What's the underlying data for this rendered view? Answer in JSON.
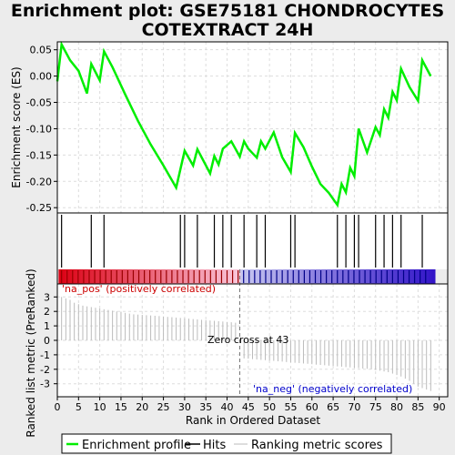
{
  "chart_data": {
    "type": "line",
    "title_line1": "Enrichment plot: GSE75181 CHONDROCYTES",
    "title_line2": "COTEXTRACT 24H",
    "xlabel": "Rank in Ordered Dataset",
    "ylabel_top": "Enrichment score (ES)",
    "ylabel_bottom": "Ranked list metric (PreRanked)",
    "xlim": [
      0,
      92
    ],
    "x_ticks": [
      0,
      5,
      10,
      15,
      20,
      25,
      30,
      35,
      40,
      45,
      50,
      55,
      60,
      65,
      70,
      75,
      80,
      85,
      90
    ],
    "es_ylim": [
      -0.26,
      0.065
    ],
    "es_ticks": [
      0.05,
      0.0,
      -0.05,
      -0.1,
      -0.15,
      -0.2,
      -0.25
    ],
    "es_tick_labels": [
      "0.05",
      "0.00",
      "-0.05",
      "-0.10",
      "-0.15",
      "-0.20",
      "-0.25"
    ],
    "metric_ylim": [
      -3.9,
      3.9
    ],
    "metric_ticks": [
      3,
      2,
      1,
      0,
      -1,
      -2,
      -3
    ],
    "metric_tick_labels": [
      "3",
      "2",
      "1",
      "0",
      "-1",
      "-2",
      "-3"
    ],
    "grid": true,
    "es_color": "#00ee00",
    "hit_color": "#000000",
    "metric_color": "#bbbbbb",
    "series": [
      {
        "name": "Enrichment profile",
        "x": [
          0,
          1,
          3,
          5,
          7,
          8,
          10,
          11,
          13,
          16,
          19,
          22,
          25,
          28,
          30,
          32,
          33,
          36,
          37,
          38,
          39,
          41,
          43,
          44,
          45,
          47,
          48,
          49,
          51,
          53,
          55,
          56,
          58,
          60,
          62,
          64,
          66,
          67,
          68,
          69,
          70,
          71,
          73,
          75,
          76,
          77,
          78,
          79,
          80,
          81,
          83,
          85,
          86,
          88
        ],
        "y": [
          -0.01,
          0.06,
          0.03,
          0.01,
          -0.033,
          0.023,
          -0.008,
          0.047,
          0.017,
          -0.035,
          -0.085,
          -0.13,
          -0.17,
          -0.212,
          -0.142,
          -0.17,
          -0.139,
          -0.185,
          -0.152,
          -0.168,
          -0.138,
          -0.124,
          -0.153,
          -0.124,
          -0.138,
          -0.155,
          -0.124,
          -0.138,
          -0.107,
          -0.154,
          -0.182,
          -0.108,
          -0.135,
          -0.172,
          -0.205,
          -0.222,
          -0.245,
          -0.205,
          -0.221,
          -0.174,
          -0.19,
          -0.1,
          -0.145,
          -0.097,
          -0.112,
          -0.063,
          -0.079,
          -0.03,
          -0.046,
          0.014,
          -0.021,
          -0.047,
          0.03,
          0.0
        ]
      },
      {
        "name": "Hits",
        "x": [
          1,
          8,
          11,
          29,
          30,
          33,
          37,
          39,
          41,
          44,
          47,
          49,
          55,
          56,
          66,
          68,
          70,
          71,
          75,
          77,
          79,
          81,
          86
        ]
      },
      {
        "name": "Ranking metric scores",
        "x": [
          1,
          2,
          3,
          4,
          5,
          6,
          7,
          8,
          9,
          10,
          11,
          12,
          13,
          14,
          15,
          16,
          17,
          18,
          19,
          20,
          21,
          22,
          23,
          24,
          25,
          26,
          27,
          28,
          29,
          30,
          31,
          32,
          33,
          34,
          35,
          36,
          37,
          38,
          39,
          40,
          41,
          42,
          43,
          44,
          45,
          46,
          47,
          48,
          49,
          50,
          51,
          52,
          53,
          54,
          55,
          56,
          57,
          58,
          59,
          60,
          61,
          62,
          63,
          64,
          65,
          66,
          67,
          68,
          69,
          70,
          71,
          72,
          73,
          74,
          75,
          76,
          77,
          78,
          79,
          80,
          81,
          82,
          83,
          84,
          85,
          86,
          87,
          88
        ],
        "values": [
          3.0,
          2.9,
          2.8,
          2.6,
          2.5,
          2.4,
          2.35,
          2.3,
          2.25,
          2.2,
          2.15,
          2.1,
          2.05,
          2.0,
          1.95,
          1.9,
          1.85,
          1.8,
          1.78,
          1.76,
          1.74,
          1.72,
          1.7,
          1.68,
          1.65,
          1.62,
          1.6,
          1.57,
          1.55,
          1.52,
          1.5,
          1.47,
          1.45,
          1.42,
          1.4,
          1.37,
          1.35,
          1.32,
          1.3,
          1.27,
          1.25,
          1.22,
          0.0,
          -1.25,
          -1.27,
          -1.3,
          -1.32,
          -1.35,
          -1.37,
          -1.4,
          -1.42,
          -1.45,
          -1.47,
          -1.5,
          -1.52,
          -1.55,
          -1.57,
          -1.6,
          -1.62,
          -1.65,
          -1.68,
          -1.7,
          -1.72,
          -1.75,
          -1.77,
          -1.8,
          -1.82,
          -1.85,
          -1.87,
          -1.9,
          -1.92,
          -1.95,
          -1.97,
          -2.0,
          -2.05,
          -2.1,
          -2.15,
          -2.2,
          -2.3,
          -2.4,
          -2.5,
          -2.65,
          -2.8,
          -3.0,
          -3.2,
          -3.3,
          -3.4,
          -3.5
        ]
      }
    ],
    "legend": {
      "placement": "bottom",
      "items": [
        "Enrichment profile",
        "Hits",
        "Ranking metric scores"
      ]
    },
    "annotations": {
      "pos_label": "'na_pos' (positively correlated)",
      "neg_label": "'na_neg' (negatively correlated)",
      "zero_cross_label": "Zero cross at 43",
      "zero_cross_x": 43,
      "pos_color": "#cc0000",
      "neg_color": "#0000cc"
    }
  }
}
